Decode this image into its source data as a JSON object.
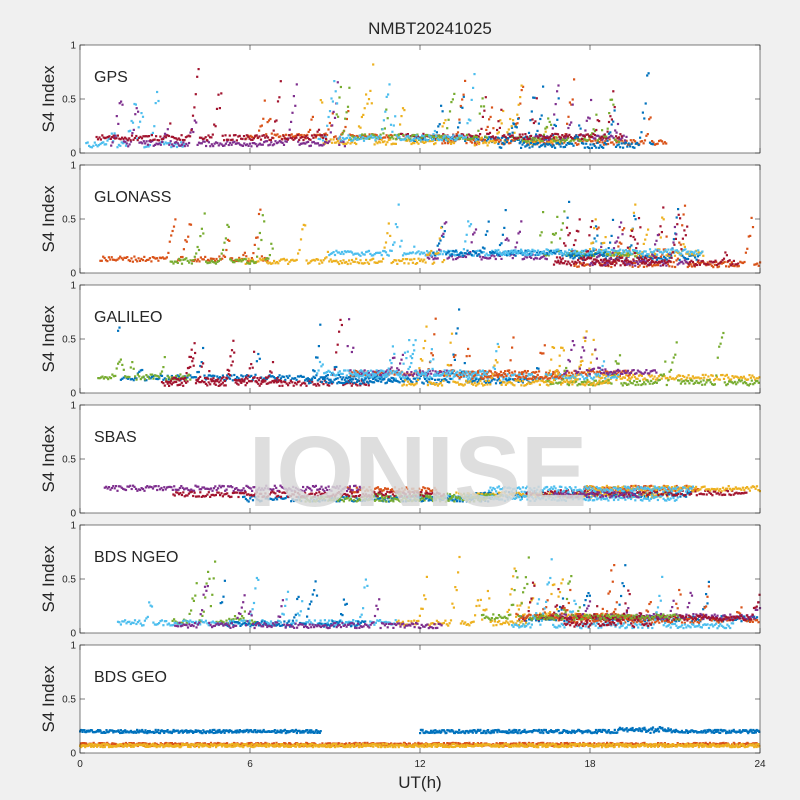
{
  "chart_data": {
    "type": "scatter",
    "title": "NMBT20241025",
    "xlabel": "UT(h)",
    "ylabel": "S4 Index",
    "xlim": [
      0,
      24
    ],
    "ylim": [
      0,
      1
    ],
    "xticks": [
      "0",
      "6",
      "12",
      "18",
      "24"
    ],
    "yticks": [
      "0",
      "0.5",
      "1"
    ],
    "grid": false,
    "watermark": "IONISE",
    "colors": [
      "#0072BD",
      "#D95319",
      "#EDB120",
      "#7E2F8E",
      "#77AC30",
      "#4DBEEE",
      "#A2142F"
    ],
    "panels": [
      {
        "label": "GPS",
        "system": "GPS",
        "base_min": 0.07,
        "base_max": 0.16,
        "spike_max": 0.78,
        "spikes_per_track": 6
      },
      {
        "label": "GLONASS",
        "system": "GLONASS",
        "base_min": 0.06,
        "base_max": 0.2,
        "spike_max": 0.66,
        "spikes_per_track": 6
      },
      {
        "label": "GALILEO",
        "system": "GALILEO",
        "base_min": 0.06,
        "base_max": 0.2,
        "spike_max": 0.73,
        "spikes_per_track": 5
      },
      {
        "label": "SBAS",
        "system": "SBAS",
        "base_min": 0.09,
        "base_max": 0.23,
        "spike_max": 0.3,
        "spikes_per_track": 0
      },
      {
        "label": "BDS NGEO",
        "system": "BDS NGEO",
        "base_min": 0.06,
        "base_max": 0.18,
        "spike_max": 0.7,
        "spikes_per_track": 5
      },
      {
        "label": "BDS GEO",
        "system": "BDS GEO",
        "base_min": 0.07,
        "base_max": 0.22,
        "spike_max": 0.28,
        "spikes_per_track": 0,
        "geo_tracks": [
          {
            "color": "#0072BD",
            "level": 0.2,
            "segments": [
              [
                0,
                8.5
              ],
              [
                12,
                24
              ]
            ]
          },
          {
            "color": "#D95319",
            "level": 0.08,
            "segments": [
              [
                0,
                24
              ]
            ]
          },
          {
            "color": "#EDB120",
            "level": 0.07,
            "segments": [
              [
                0,
                24
              ]
            ]
          }
        ]
      }
    ]
  }
}
